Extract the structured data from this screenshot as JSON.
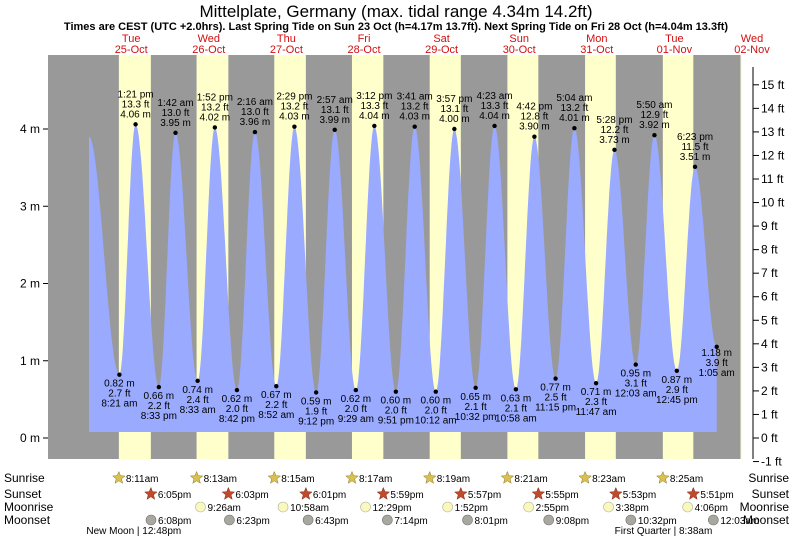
{
  "chart_data": {
    "type": "area",
    "title": "Mittelplate, Germany (max. tidal range 4.34m 14.2ft)",
    "subtitle": "Times are CEST (UTC +2.0hrs). Last Spring Tide on Sun 23 Oct (h=4.17m 13.7ft). Next Spring Tide on Fri 28 Oct (h=4.04m 13.3ft)",
    "days": [
      {
        "dow": "Tue",
        "date": "25-Oct"
      },
      {
        "dow": "Wed",
        "date": "26-Oct"
      },
      {
        "dow": "Thu",
        "date": "27-Oct"
      },
      {
        "dow": "Fri",
        "date": "28-Oct"
      },
      {
        "dow": "Sat",
        "date": "29-Oct"
      },
      {
        "dow": "Sun",
        "date": "30-Oct"
      },
      {
        "dow": "Mon",
        "date": "31-Oct"
      },
      {
        "dow": "Tue",
        "date": "01-Nov"
      },
      {
        "dow": "Wed",
        "date": "02-Nov"
      }
    ],
    "y_left_ticks": [
      "0 m",
      "1 m",
      "2 m",
      "3 m",
      "4 m"
    ],
    "y_right_ticks": [
      "-1 ft",
      "0 ft",
      "1 ft",
      "2 ft",
      "3 ft",
      "4 ft",
      "5 ft",
      "6 ft",
      "7 ft",
      "8 ft",
      "9 ft",
      "10 ft",
      "11 ft",
      "12 ft",
      "13 ft",
      "14 ft",
      "15 ft"
    ],
    "ylim_m": [
      -0.3,
      4.9
    ],
    "start_level_m": 3.9,
    "tides": [
      {
        "type": "low",
        "day": 0,
        "hour": 8.35,
        "time": "8:21 am",
        "m": "0.82 m",
        "ft": "2.7 ft",
        "h": 0.82
      },
      {
        "type": "high",
        "day": 0,
        "hour": 13.35,
        "time": "1:21 pm",
        "m": "4.06 m",
        "ft": "13.3 ft",
        "h": 4.06
      },
      {
        "type": "low",
        "day": 0,
        "hour": 20.55,
        "time": "8:33 pm",
        "m": "0.66 m",
        "ft": "2.2 ft",
        "h": 0.66
      },
      {
        "type": "high",
        "day": 1,
        "hour": 1.7,
        "time": "1:42 am",
        "m": "3.95 m",
        "ft": "13.0 ft",
        "h": 3.95
      },
      {
        "type": "low",
        "day": 1,
        "hour": 8.55,
        "time": "8:33 am",
        "m": "0.74 m",
        "ft": "2.4 ft",
        "h": 0.74
      },
      {
        "type": "high",
        "day": 1,
        "hour": 13.87,
        "time": "1:52 pm",
        "m": "4.02 m",
        "ft": "13.2 ft",
        "h": 4.02
      },
      {
        "type": "low",
        "day": 1,
        "hour": 20.7,
        "time": "8:42 pm",
        "m": "0.62 m",
        "ft": "2.0 ft",
        "h": 0.62
      },
      {
        "type": "high",
        "day": 2,
        "hour": 2.27,
        "time": "2:16 am",
        "m": "3.96 m",
        "ft": "13.0 ft",
        "h": 3.96
      },
      {
        "type": "low",
        "day": 2,
        "hour": 8.87,
        "time": "8:52 am",
        "m": "0.67 m",
        "ft": "2.2 ft",
        "h": 0.67
      },
      {
        "type": "high",
        "day": 2,
        "hour": 14.48,
        "time": "2:29 pm",
        "m": "4.03 m",
        "ft": "13.2 ft",
        "h": 4.03
      },
      {
        "type": "low",
        "day": 2,
        "hour": 21.2,
        "time": "9:12 pm",
        "m": "0.59 m",
        "ft": "1.9 ft",
        "h": 0.59
      },
      {
        "type": "high",
        "day": 3,
        "hour": 2.95,
        "time": "2:57 am",
        "m": "3.99 m",
        "ft": "13.1 ft",
        "h": 3.99
      },
      {
        "type": "low",
        "day": 3,
        "hour": 9.48,
        "time": "9:29 am",
        "m": "0.62 m",
        "ft": "2.0 ft",
        "h": 0.62
      },
      {
        "type": "high",
        "day": 3,
        "hour": 15.2,
        "time": "3:12 pm",
        "m": "4.04 m",
        "ft": "13.3 ft",
        "h": 4.04
      },
      {
        "type": "low",
        "day": 3,
        "hour": 21.85,
        "time": "9:51 pm",
        "m": "0.60 m",
        "ft": "2.0 ft",
        "h": 0.6
      },
      {
        "type": "high",
        "day": 4,
        "hour": 3.68,
        "time": "3:41 am",
        "m": "4.03 m",
        "ft": "13.2 ft",
        "h": 4.03
      },
      {
        "type": "low",
        "day": 4,
        "hour": 10.2,
        "time": "10:12 am",
        "m": "0.60 m",
        "ft": "2.0 ft",
        "h": 0.6
      },
      {
        "type": "high",
        "day": 4,
        "hour": 15.95,
        "time": "3:57 pm",
        "m": "4.00 m",
        "ft": "13.1 ft",
        "h": 4.0
      },
      {
        "type": "low",
        "day": 4,
        "hour": 22.53,
        "time": "10:32 pm",
        "m": "0.65 m",
        "ft": "2.1 ft",
        "h": 0.65
      },
      {
        "type": "high",
        "day": 5,
        "hour": 4.38,
        "time": "4:23 am",
        "m": "4.04 m",
        "ft": "13.3 ft",
        "h": 4.04
      },
      {
        "type": "low",
        "day": 5,
        "hour": 10.97,
        "time": "10:58 am",
        "m": "0.63 m",
        "ft": "2.1 ft",
        "h": 0.63
      },
      {
        "type": "high",
        "day": 5,
        "hour": 16.7,
        "time": "4:42 pm",
        "m": "3.90 m",
        "ft": "12.8 ft",
        "h": 3.9
      },
      {
        "type": "low",
        "day": 5,
        "hour": 23.25,
        "time": "11:15 pm",
        "m": "0.77 m",
        "ft": "2.5 ft",
        "h": 0.77
      },
      {
        "type": "high",
        "day": 6,
        "hour": 5.07,
        "time": "5:04 am",
        "m": "4.01 m",
        "ft": "13.2 ft",
        "h": 4.01
      },
      {
        "type": "low",
        "day": 6,
        "hour": 11.78,
        "time": "11:47 am",
        "m": "0.71 m",
        "ft": "2.3 ft",
        "h": 0.71
      },
      {
        "type": "high",
        "day": 6,
        "hour": 17.47,
        "time": "5:28 pm",
        "m": "3.73 m",
        "ft": "12.2 ft",
        "h": 3.73
      },
      {
        "type": "low",
        "day": 7,
        "hour": 0.05,
        "time": "12:03 am",
        "m": "0.95 m",
        "ft": "3.1 ft",
        "h": 0.95
      },
      {
        "type": "high",
        "day": 7,
        "hour": 5.83,
        "time": "5:50 am",
        "m": "3.92 m",
        "ft": "12.9 ft",
        "h": 3.92
      },
      {
        "type": "low",
        "day": 7,
        "hour": 12.75,
        "time": "12:45 pm",
        "m": "0.87 m",
        "ft": "2.9 ft",
        "h": 0.87
      },
      {
        "type": "high",
        "day": 7,
        "hour": 18.38,
        "time": "6:23 pm",
        "m": "3.51 m",
        "ft": "11.5 ft",
        "h": 3.51
      },
      {
        "type": "low",
        "day": 8,
        "hour": 1.08,
        "time": "1:05 am",
        "m": "1.18 m",
        "ft": "3.9 ft",
        "h": 1.18
      }
    ],
    "row_labels": [
      "Sunrise",
      "Sunset",
      "Moonrise",
      "Moonset"
    ],
    "sunrise": [
      {
        "day": 0,
        "hour": 8.18,
        "time": "8:11am"
      },
      {
        "day": 1,
        "hour": 8.22,
        "time": "8:13am"
      },
      {
        "day": 2,
        "hour": 8.25,
        "time": "8:15am"
      },
      {
        "day": 3,
        "hour": 8.28,
        "time": "8:17am"
      },
      {
        "day": 4,
        "hour": 8.32,
        "time": "8:19am"
      },
      {
        "day": 5,
        "hour": 8.35,
        "time": "8:21am"
      },
      {
        "day": 6,
        "hour": 8.38,
        "time": "8:23am"
      },
      {
        "day": 7,
        "hour": 8.42,
        "time": "8:25am"
      }
    ],
    "sunset": [
      {
        "day": 0,
        "hour": 18.08,
        "time": "6:05pm"
      },
      {
        "day": 1,
        "hour": 18.05,
        "time": "6:03pm"
      },
      {
        "day": 2,
        "hour": 18.02,
        "time": "6:01pm"
      },
      {
        "day": 3,
        "hour": 17.98,
        "time": "5:59pm"
      },
      {
        "day": 4,
        "hour": 17.95,
        "time": "5:57pm"
      },
      {
        "day": 5,
        "hour": 17.92,
        "time": "5:55pm"
      },
      {
        "day": 6,
        "hour": 17.88,
        "time": "5:53pm"
      },
      {
        "day": 7,
        "hour": 17.85,
        "time": "5:51pm"
      }
    ],
    "moonrise": [
      {
        "day": 1,
        "hour": 9.43,
        "time": "9:26am"
      },
      {
        "day": 2,
        "hour": 10.97,
        "time": "10:58am"
      },
      {
        "day": 3,
        "hour": 12.48,
        "time": "12:29pm"
      },
      {
        "day": 4,
        "hour": 13.87,
        "time": "1:52pm"
      },
      {
        "day": 5,
        "hour": 14.92,
        "time": "2:55pm"
      },
      {
        "day": 6,
        "hour": 15.63,
        "time": "3:38pm"
      },
      {
        "day": 7,
        "hour": 16.1,
        "time": "4:06pm"
      }
    ],
    "moonset": [
      {
        "day": 0,
        "hour": 18.13,
        "time": "6:08pm"
      },
      {
        "day": 1,
        "hour": 18.38,
        "time": "6:23pm"
      },
      {
        "day": 2,
        "hour": 18.72,
        "time": "6:43pm"
      },
      {
        "day": 3,
        "hour": 19.23,
        "time": "7:14pm"
      },
      {
        "day": 4,
        "hour": 20.02,
        "time": "8:01pm"
      },
      {
        "day": 5,
        "hour": 21.13,
        "time": "9:08pm"
      },
      {
        "day": 6,
        "hour": 22.53,
        "time": "10:32pm"
      },
      {
        "day": 8,
        "hour": 0.05,
        "time": "12:03am"
      }
    ],
    "moon_phases": [
      {
        "label": "New Moon",
        "time": "12:48pm",
        "day": 0,
        "hour": 12.8
      },
      {
        "label": "First Quarter",
        "time": "8:38am",
        "day": 7,
        "hour": 8.63
      }
    ]
  },
  "colors": {
    "night": "#999999",
    "day": "#ffffcc",
    "water": "#99aaff",
    "star_sun": "#d9c050",
    "star_sunset": "#c04a2a",
    "moonrise": "#f8f8c0",
    "moonset": "#a8a8a0",
    "date_text": "#d01010"
  }
}
